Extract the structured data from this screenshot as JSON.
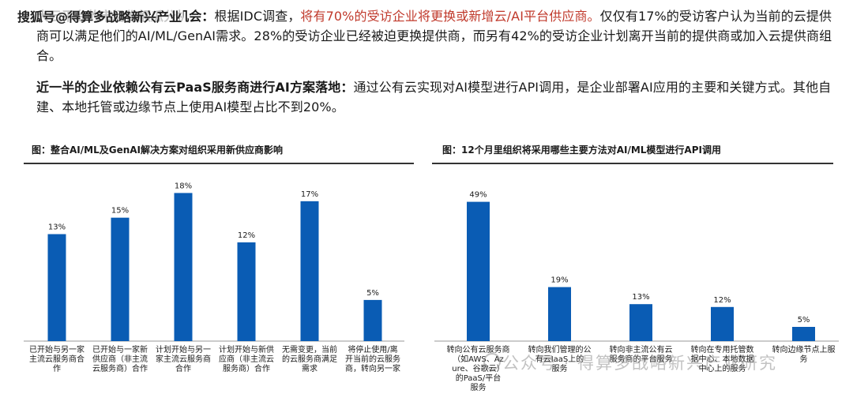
{
  "overlay_text": "搜狐号@得算多战略新兴产业",
  "paragraph1": {
    "bold_lead": "大云平台的市场份额瓜分机会：",
    "text_a": "根据IDC调查，",
    "text_red": "将有70%的受访企业将更换或新增云/AI平台供应商。",
    "text_b": "仅仅有17%的受访客户认为当前的云提供商可以满足他们的AI/ML/GenAI需求。28%的受访企业已经被迫更换提供商，而另有42%的受访企业计划离开当前的提供商或加入云提供商组合。"
  },
  "paragraph2": {
    "bold_lead": "近一半的企业依赖公有云PaaS服务商进行AI方案落地：",
    "text": "通过公有云实现对AI模型进行API调用，是企业部署AI应用的主要和关键方式。其他自建、本地托管或边缘节点上使用AI模型占比不到20%。"
  },
  "bar_color": "#0a5cb4",
  "chart_data": [
    {
      "type": "bar",
      "title": "图：整合AI/ML及GenAI解决方案对组织采用新供应商影响",
      "categories": [
        "已开始与另一家主流云服务商合作",
        "已开始与一家新供应商（非主流云服务商）合作",
        "计划开始与另一家主流云服务商合作",
        "计划开始与新供应商（非主流云服务商）合作",
        "无需变更，当前的云服务商满足需求",
        "将停止使用/离开当前的云服务商，转向另一家"
      ],
      "values": [
        13,
        15,
        18,
        12,
        17,
        5
      ],
      "data_labels": [
        "13%",
        "15%",
        "18%",
        "12%",
        "17%",
        "5%"
      ],
      "ylim": [
        0,
        19
      ]
    },
    {
      "type": "bar",
      "title": "图：12个月里组织将采用哪些主要方法对AI/ML模型进行API调用",
      "categories": [
        "转向公有云服务商（如AWS、Azure、谷歌云）的PaaS/平台服务",
        "转向我们管理的公有云IaaS上的服务",
        "转向非主流公有云服务商的平台服务",
        "转向在专用托管数据中心、本地数据中心上的服务",
        "转向边缘节点上服务"
      ],
      "values": [
        49,
        19,
        13,
        12,
        5
      ],
      "data_labels": [
        "49%",
        "19%",
        "13%",
        "12%",
        "5%"
      ],
      "ylim": [
        0,
        55
      ]
    }
  ],
  "watermark": "公众号 · 得算多战略新兴产业研究"
}
